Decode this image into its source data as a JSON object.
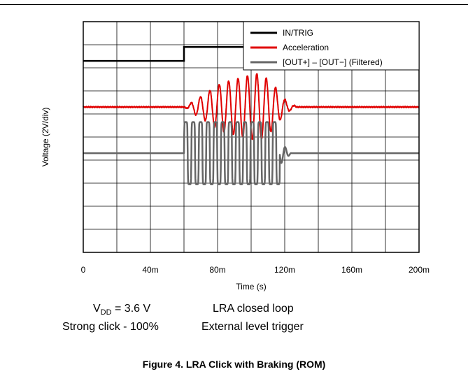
{
  "chart_data": {
    "type": "line",
    "title": "",
    "xlabel": "Time (s)",
    "ylabel": "Voltage (2V/div)",
    "xlim": [
      0,
      200
    ],
    "x_tick_labels": [
      "0",
      "40m",
      "80m",
      "120m",
      "160m",
      "200m"
    ],
    "x_divisions": 10,
    "y_divisions": 10,
    "y_unit_per_div": 2,
    "ylim_div": [
      0,
      10
    ],
    "grid": true,
    "legend_position": "top-right",
    "series": [
      {
        "name": "IN/TRIG",
        "color": "#000000",
        "baseline_div": 8.3,
        "high_div": 8.9,
        "x": [
          0,
          60,
          60,
          140,
          140,
          200
        ],
        "state": [
          0,
          0,
          1,
          1,
          0,
          0
        ]
      },
      {
        "name": "Acceleration",
        "color": "#e00000",
        "baseline_div": 6.3,
        "cycle_period": 5.6,
        "start": 60,
        "stop": 128,
        "envelope_x": [
          60,
          63,
          66,
          70,
          75,
          80,
          85,
          90,
          95,
          100,
          104,
          107,
          110,
          113,
          116,
          119,
          122,
          125,
          128
        ],
        "envelope_div": [
          0,
          0.1,
          0.3,
          0.45,
          0.7,
          0.95,
          1.1,
          1.2,
          1.3,
          1.4,
          1.45,
          1.35,
          1.2,
          1.0,
          0.7,
          0.4,
          0.2,
          0.08,
          0
        ],
        "noise_div": 0.03
      },
      {
        "name": "[OUT+] – [OUT−] (Filtered)",
        "color": "#666666",
        "baseline_div": 4.3,
        "cycle_period": 4.4,
        "start": 60,
        "drive_stop": 117,
        "brake_start": 117,
        "brake_stop": 124,
        "drive_amplitude_div": 1.35,
        "brake_amplitude_div": 0.5
      }
    ]
  },
  "conditions": {
    "vdd_prefix": "V",
    "vdd_sub": "DD",
    "vdd_value": " = 3.6 V",
    "loop_mode": "LRA closed loop",
    "effect": "Strong click - 100%",
    "trigger": "External level trigger"
  },
  "caption": "Figure 4. LRA Click with Braking (ROM)"
}
